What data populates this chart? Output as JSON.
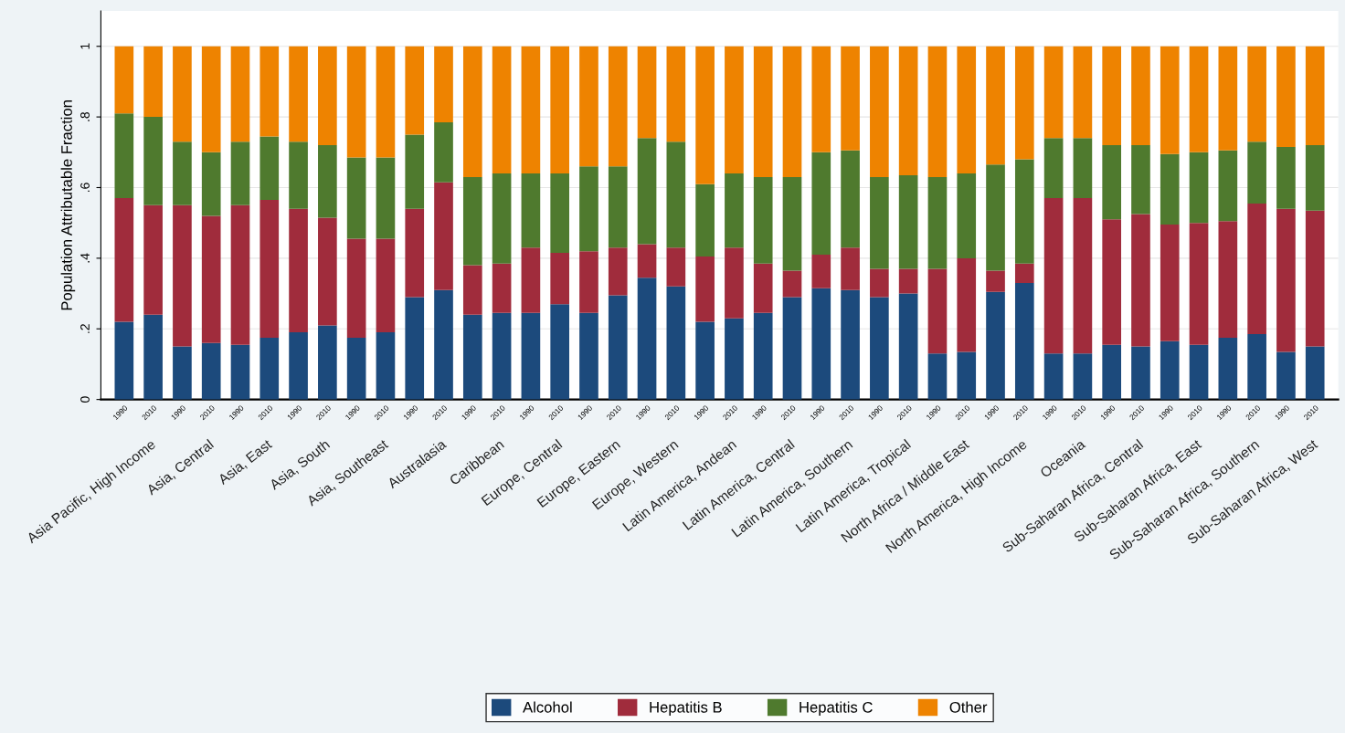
{
  "chart_data": {
    "type": "bar",
    "stacked": true,
    "ylabel": "Population Attributable Fraction",
    "categories": [
      "1990",
      "2010",
      "1990",
      "2010",
      "1990",
      "2010",
      "1990",
      "2010",
      "1990",
      "2010",
      "1990",
      "2010",
      "1990",
      "2010",
      "1990",
      "2010",
      "1990",
      "2010",
      "1990",
      "2010",
      "1990",
      "2010",
      "1990",
      "2010",
      "1990",
      "2010",
      "1990",
      "2010",
      "1990",
      "2010",
      "1990",
      "2010",
      "1990",
      "2010",
      "1990",
      "2010",
      "1990",
      "2010",
      "1990",
      "2010",
      "1990",
      "2010"
    ],
    "annotations": [
      "Asia Pacific, High Income",
      "Asia, Central",
      "Asia, East",
      "Asia, South",
      "Asia, Southeast",
      "Australasia",
      "Caribbean",
      "Europe, Central",
      "Europe, Eastern",
      "Europe, Western",
      "Latin America, Andean",
      "Latin America, Central",
      "Latin America, Southern",
      "Latin America, Tropical",
      "North Africa / Middle East",
      "North America, High Income",
      "Oceania",
      "Sub-Saharan Africa, Central",
      "Sub-Saharan Africa, East",
      "Sub-Saharan Africa, Southern",
      "Sub-Saharan Africa, West"
    ],
    "series": [
      {
        "name": "Alcohol",
        "color": "#1c4a7c",
        "values": [
          0.22,
          0.24,
          0.15,
          0.16,
          0.155,
          0.175,
          0.19,
          0.21,
          0.175,
          0.19,
          0.29,
          0.31,
          0.24,
          0.245,
          0.245,
          0.27,
          0.245,
          0.295,
          0.345,
          0.32,
          0.22,
          0.23,
          0.245,
          0.29,
          0.315,
          0.31,
          0.29,
          0.3,
          0.13,
          0.135,
          0.305,
          0.33,
          0.13,
          0.13,
          0.155,
          0.15,
          0.165,
          0.155,
          0.175,
          0.185,
          0.135,
          0.15
        ]
      },
      {
        "name": "Hepatitis B",
        "color": "#a02c3c",
        "values": [
          0.35,
          0.31,
          0.4,
          0.36,
          0.395,
          0.39,
          0.35,
          0.305,
          0.28,
          0.265,
          0.25,
          0.305,
          0.14,
          0.14,
          0.185,
          0.145,
          0.175,
          0.135,
          0.095,
          0.11,
          0.185,
          0.2,
          0.14,
          0.075,
          0.095,
          0.12,
          0.08,
          0.07,
          0.24,
          0.265,
          0.06,
          0.055,
          0.44,
          0.44,
          0.355,
          0.375,
          0.33,
          0.345,
          0.33,
          0.37,
          0.405,
          0.385
        ]
      },
      {
        "name": "Hepatitis C",
        "color": "#4f7a2e",
        "values": [
          0.24,
          0.25,
          0.18,
          0.18,
          0.18,
          0.18,
          0.19,
          0.205,
          0.23,
          0.23,
          0.21,
          0.17,
          0.25,
          0.255,
          0.21,
          0.225,
          0.24,
          0.23,
          0.3,
          0.3,
          0.205,
          0.21,
          0.245,
          0.265,
          0.29,
          0.275,
          0.26,
          0.265,
          0.26,
          0.24,
          0.3,
          0.295,
          0.17,
          0.17,
          0.21,
          0.195,
          0.2,
          0.2,
          0.2,
          0.175,
          0.175,
          0.185
        ]
      },
      {
        "name": "Other",
        "color": "#ee8300",
        "values": [
          0.19,
          0.2,
          0.27,
          0.3,
          0.27,
          0.255,
          0.27,
          0.28,
          0.315,
          0.315,
          0.25,
          0.215,
          0.37,
          0.36,
          0.36,
          0.36,
          0.34,
          0.34,
          0.26,
          0.27,
          0.39,
          0.36,
          0.37,
          0.37,
          0.3,
          0.295,
          0.37,
          0.365,
          0.37,
          0.36,
          0.335,
          0.32,
          0.26,
          0.26,
          0.28,
          0.28,
          0.305,
          0.3,
          0.295,
          0.27,
          0.285,
          0.28
        ]
      }
    ],
    "ylim": [
      0,
      1.1
    ],
    "yticks": [
      0,
      {
        "value": 0.2,
        "label": ".2"
      },
      {
        "value": 0.4,
        "label": ".4"
      },
      {
        "value": 0.6,
        "label": ".6"
      },
      {
        "value": 0.8,
        "label": ".8"
      },
      1
    ],
    "grid": "y",
    "legend": "bottom"
  }
}
